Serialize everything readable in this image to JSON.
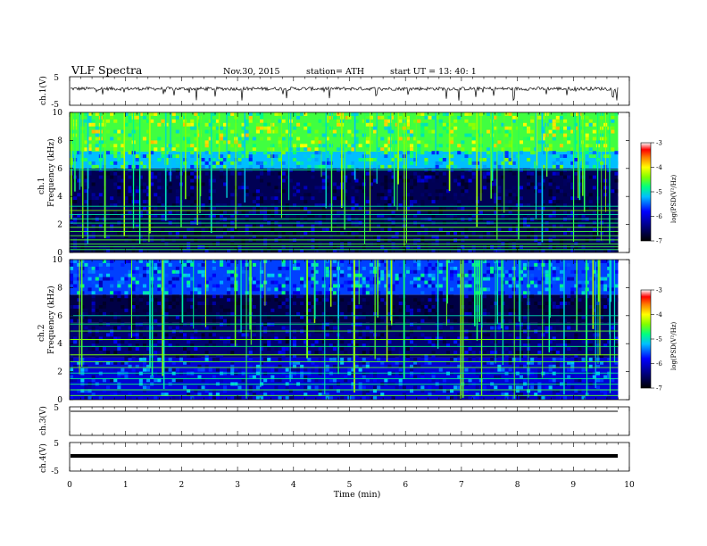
{
  "header": {
    "title": "VLF  Spectra",
    "date": "Nov.30, 2015",
    "station": "station= ATH",
    "start": "start  UT  =    13: 40: 1"
  },
  "chart_data": [
    {
      "type": "line",
      "title": "ch.1(V)",
      "ylabel": "ch.1(V)",
      "ylim": [
        -5,
        5
      ],
      "xlim": [
        0,
        10
      ],
      "y_ticks": [
        "5",
        "-5"
      ],
      "description_values": {
        "baseline_v": 0.8,
        "noise_amplitude_v": 0.6,
        "x_end_min": 9.8
      }
    },
    {
      "type": "heatmap",
      "ylabel_channel": "ch.1",
      "ylabel": "Frequency  (kHz)",
      "ylim": [
        0,
        10
      ],
      "xlim": [
        0,
        10
      ],
      "y_ticks": [
        "0",
        "2",
        "4",
        "6",
        "8",
        "10"
      ],
      "colorbar": {
        "label": "log(PSD(V²/Hz)",
        "range": [
          -7,
          -3
        ],
        "ticks": [
          "-3",
          "-4",
          "-5",
          "-6",
          "-7"
        ]
      },
      "bands_khz": [
        {
          "from": 0,
          "to": 6,
          "log_psd": -6.7
        },
        {
          "from": 6,
          "to": 7.2,
          "log_psd": -5.2
        },
        {
          "from": 7.2,
          "to": 10,
          "log_psd": -4.6
        }
      ],
      "lines_khz": [
        0.2,
        0.4,
        0.6,
        0.9,
        1.2,
        1.5,
        1.8,
        2.1,
        2.4,
        2.7,
        3.0,
        3.3,
        5.9
      ]
    },
    {
      "type": "heatmap",
      "ylabel_channel": "ch.2",
      "ylabel": "Frequency  (kHz)",
      "ylim": [
        0,
        10
      ],
      "xlim": [
        0,
        10
      ],
      "y_ticks": [
        "0",
        "2",
        "4",
        "6",
        "8",
        "10"
      ],
      "colorbar": {
        "label": "log(PSD(V²/Hz)",
        "range": [
          -7,
          -3
        ],
        "ticks": [
          "-3",
          "-4",
          "-5",
          "-6",
          "-7"
        ]
      },
      "bands_khz": [
        {
          "from": 0,
          "to": 3,
          "log_psd": -6.0
        },
        {
          "from": 3,
          "to": 5.5,
          "log_psd": -6.5
        },
        {
          "from": 5.5,
          "to": 7.5,
          "log_psd": -6.8
        },
        {
          "from": 7.5,
          "to": 10,
          "log_psd": -5.6
        }
      ],
      "lines_khz": [
        0.3,
        0.7,
        1.1,
        1.5,
        1.9,
        2.3,
        2.7,
        3.2,
        3.8,
        4.3,
        4.9,
        5.4,
        6.0
      ]
    },
    {
      "type": "line",
      "ylabel": "ch.3(V)",
      "ylim": [
        -5,
        5
      ],
      "xlim": [
        0,
        10
      ],
      "y_ticks": [
        "5"
      ],
      "description_values": {
        "baseline_v": 0
      }
    },
    {
      "type": "line",
      "ylabel": "ch.4(V)",
      "ylim": [
        -5,
        5
      ],
      "xlim": [
        0,
        10
      ],
      "y_ticks": [
        "5",
        "-5"
      ],
      "description_values": {
        "baseline_v": 0
      }
    }
  ],
  "x_axis": {
    "label": "Time  (min)",
    "ticks": [
      "0",
      "1",
      "2",
      "3",
      "4",
      "5",
      "6",
      "7",
      "8",
      "9",
      "10"
    ]
  },
  "colors": {
    "low": "#000080",
    "mid": "#1e90ff",
    "green": "#32cd32",
    "yellow": "#ffff00",
    "high": "#ff0000"
  }
}
